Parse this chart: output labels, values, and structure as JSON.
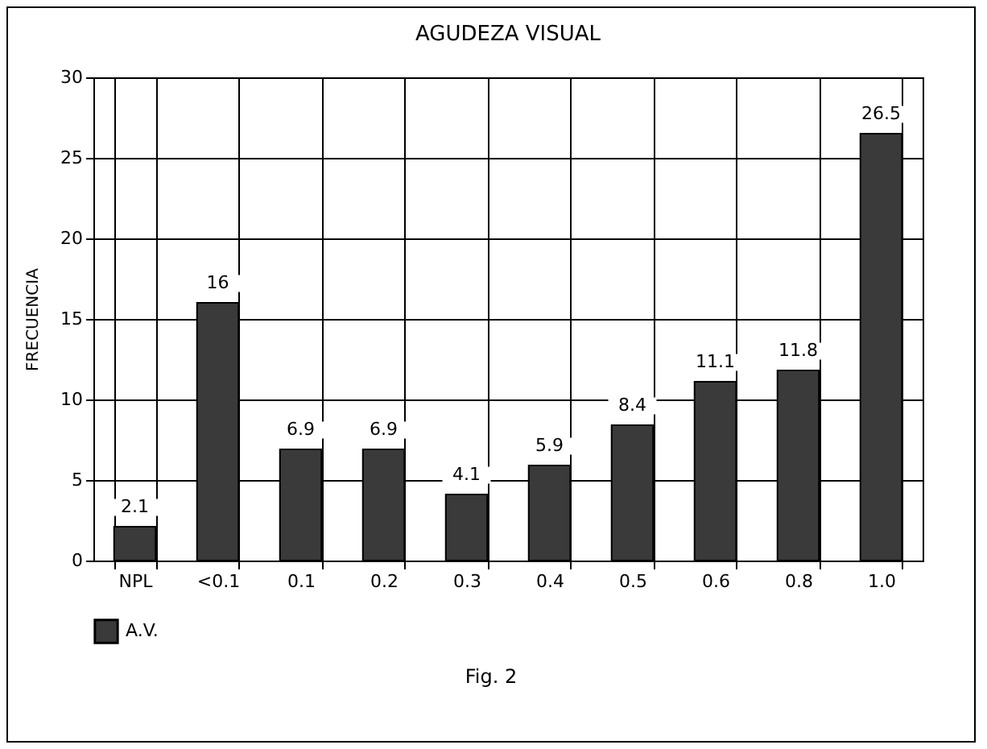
{
  "chart_data": {
    "type": "bar",
    "title": "AGUDEZA VISUAL",
    "ylabel": "FRECUENCIA",
    "categories": [
      "NPL",
      "<0.1",
      "0.1",
      "0.2",
      "0.3",
      "0.4",
      "0.5",
      "0.6",
      "0.8",
      "1.0"
    ],
    "series": [
      {
        "name": "A.V.",
        "color": "#3a3a3a",
        "values": [
          2.1,
          16,
          6.9,
          6.9,
          4.1,
          5.9,
          8.4,
          11.1,
          11.8,
          26.5
        ]
      }
    ],
    "ylim": [
      0,
      30
    ],
    "yticks": [
      0,
      5,
      10,
      15,
      20,
      25,
      30
    ],
    "grid": true,
    "legend": "bottom",
    "data_labels": true,
    "annotations": [
      "Fig. 2"
    ]
  }
}
